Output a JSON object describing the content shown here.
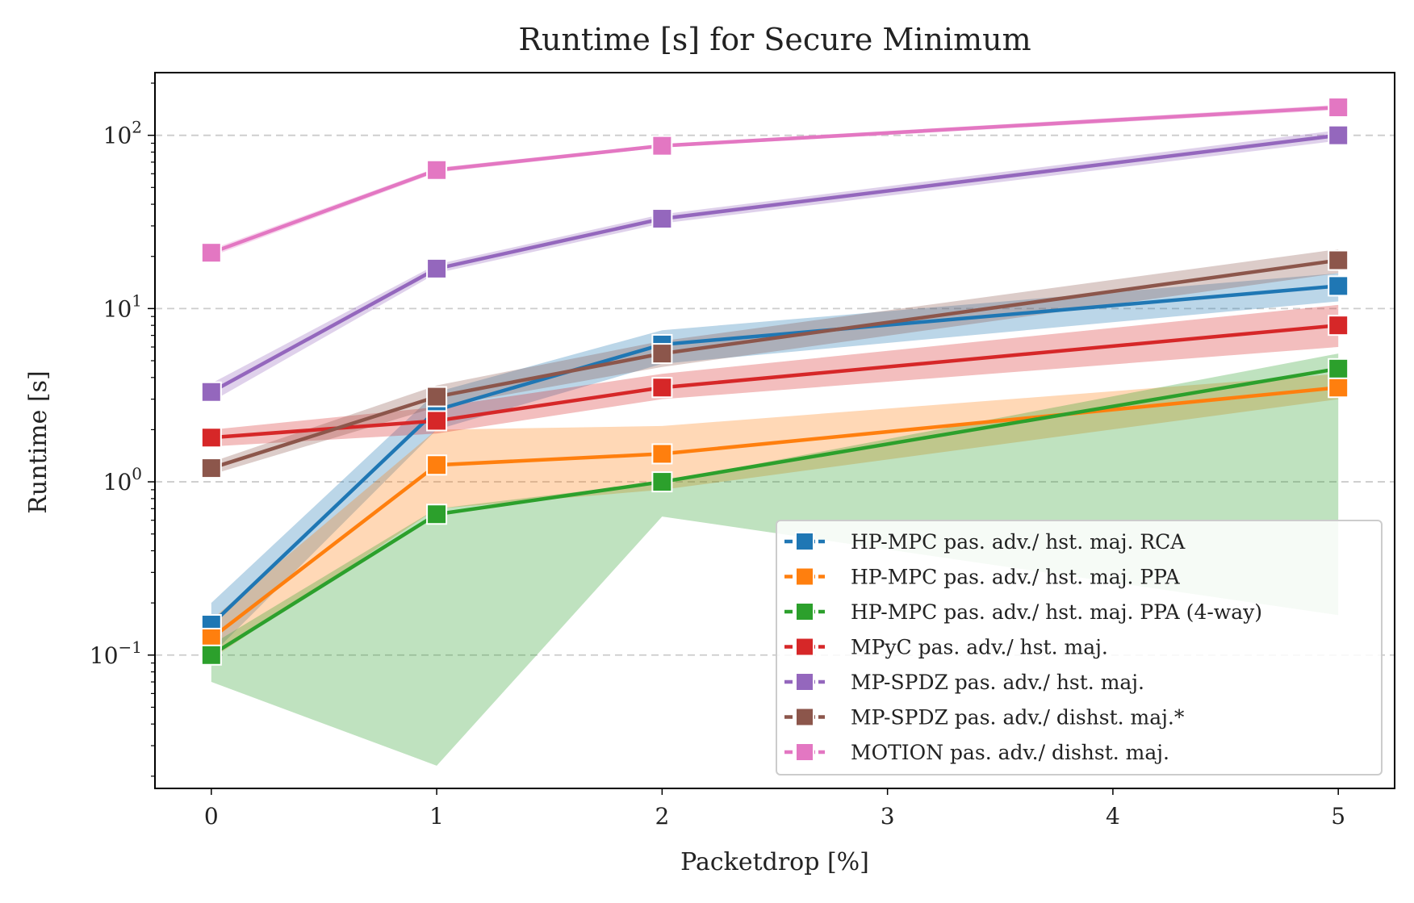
{
  "chart_data": {
    "type": "line",
    "title": "Runtime [s] for Secure Minimum",
    "xlabel": "Packetdrop [%]",
    "ylabel": "Runtime [s]",
    "y_scale": "log",
    "xlim": [
      -0.25,
      5.25
    ],
    "ylim": [
      0.017,
      230
    ],
    "x_ticks": [
      "0",
      "1",
      "2",
      "3",
      "4",
      "5"
    ],
    "y_ticks": [
      {
        "value": 0.1,
        "base": "10",
        "exp": "−1"
      },
      {
        "value": 1,
        "base": "10",
        "exp": "0"
      },
      {
        "value": 10,
        "base": "10",
        "exp": "1"
      },
      {
        "value": 100,
        "base": "10",
        "exp": "2"
      }
    ],
    "grid": "horizontal dashed at major ticks",
    "legend_position": "lower-right",
    "x": [
      0,
      1,
      2,
      5
    ],
    "series": [
      {
        "name": "HP-MPC pas. adv./ hst. maj. RCA",
        "color": "#1f77b4",
        "values": [
          0.15,
          2.6,
          6.2,
          13.5
        ],
        "band_low": [
          0.1,
          2.0,
          4.8,
          11.0
        ],
        "band_high": [
          0.2,
          3.3,
          7.5,
          16.0
        ]
      },
      {
        "name": "HP-MPC pas. adv./ hst. maj. PPA",
        "color": "#ff7f0e",
        "values": [
          0.125,
          1.25,
          1.45,
          3.5
        ],
        "band_low": [
          0.095,
          0.7,
          0.9,
          3.0
        ],
        "band_high": [
          0.16,
          2.0,
          2.1,
          4.2
        ]
      },
      {
        "name": "HP-MPC pas. adv./ hst. maj. PPA (4-way)",
        "color": "#2ca02c",
        "values": [
          0.1,
          0.65,
          1.0,
          4.5
        ],
        "band_low": [
          0.07,
          0.023,
          0.63,
          0.17
        ],
        "band_high": [
          0.115,
          0.7,
          1.0,
          5.5
        ]
      },
      {
        "name": "MPyC pas. adv./ hst. maj.",
        "color": "#d62728",
        "values": [
          1.8,
          2.25,
          3.5,
          8.0
        ],
        "band_low": [
          1.6,
          1.9,
          3.0,
          6.0
        ],
        "band_high": [
          2.0,
          2.7,
          4.2,
          10.5
        ]
      },
      {
        "name": "MP-SPDZ pas. adv./ hst. maj.",
        "color": "#9467bd",
        "values": [
          3.3,
          17.0,
          33.0,
          100.0
        ],
        "band_low": [
          2.9,
          16.0,
          31.0,
          93.0
        ],
        "band_high": [
          3.7,
          18.0,
          35.0,
          107.0
        ]
      },
      {
        "name": "MP-SPDZ pas. adv./ dishst. maj.*",
        "color": "#8c564b",
        "values": [
          1.2,
          3.1,
          5.5,
          19.0
        ],
        "band_low": [
          1.1,
          2.7,
          4.6,
          16.0
        ],
        "band_high": [
          1.3,
          3.6,
          6.5,
          22.0
        ]
      },
      {
        "name": "MOTION pas. adv./ dishst. maj.",
        "color": "#e377c2",
        "values": [
          21.0,
          63.0,
          87.0,
          145.0
        ],
        "band_low": [
          20.0,
          61.0,
          85.0,
          140.0
        ],
        "band_high": [
          22.0,
          65.0,
          89.0,
          150.0
        ]
      }
    ]
  }
}
